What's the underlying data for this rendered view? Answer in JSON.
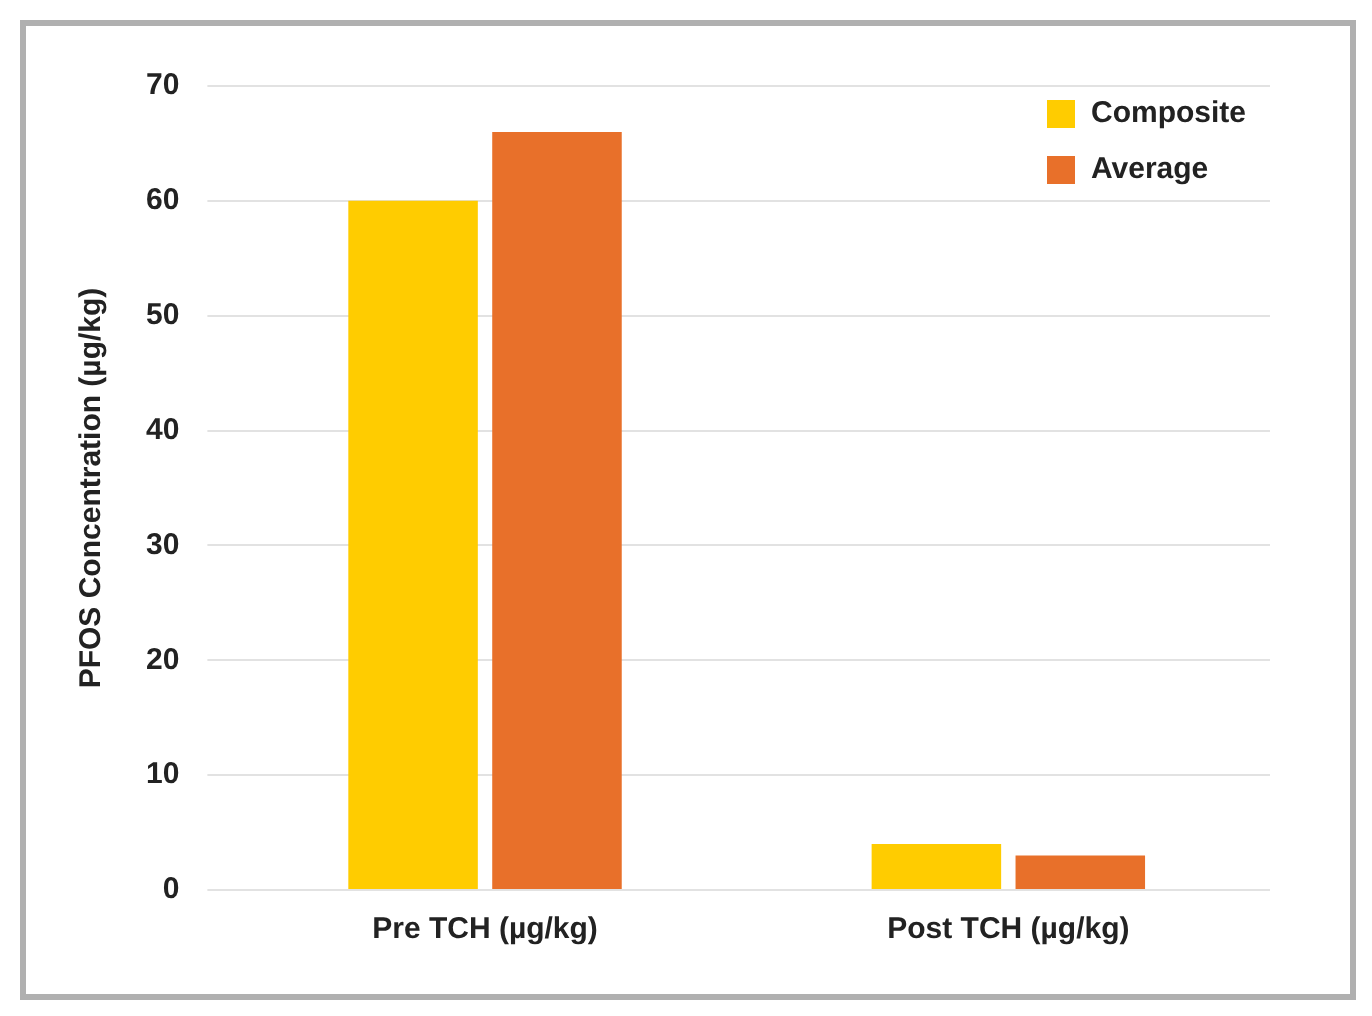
{
  "chart_data": {
    "type": "bar",
    "ylabel": "PFOS Concentration (µg/kg)",
    "categories": [
      "Pre TCH (µg/kg)",
      "Post TCH (µg/kg)"
    ],
    "series": [
      {
        "name": "Composite",
        "color": "#ffcc00",
        "values": [
          60,
          4
        ]
      },
      {
        "name": "Average",
        "color": "#e8702a",
        "values": [
          66,
          3
        ]
      }
    ],
    "ylim": [
      0,
      70
    ],
    "yticks": [
      0,
      10,
      20,
      30,
      40,
      50,
      60,
      70
    ],
    "grid": "y",
    "legend": "top right"
  }
}
